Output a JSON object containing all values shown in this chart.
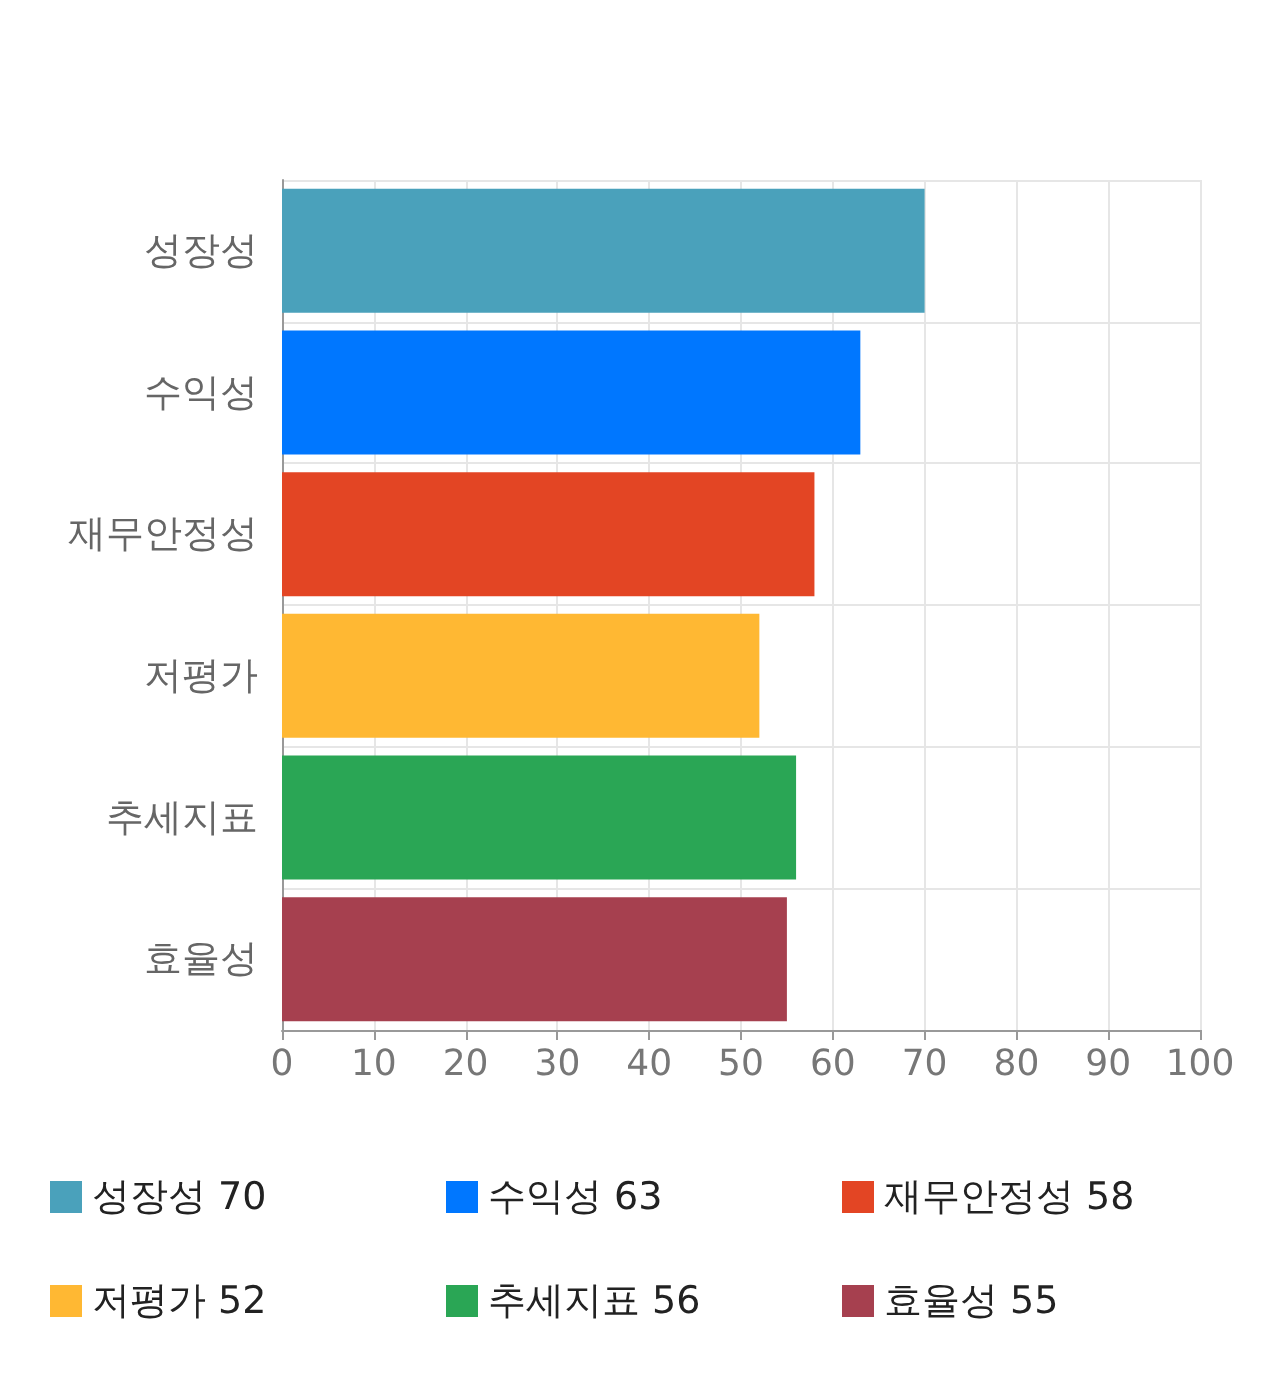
{
  "chart_data": {
    "type": "bar",
    "orientation": "horizontal",
    "stacked": true,
    "categories": [
      "성장성",
      "수익성",
      "재무안정성",
      "저평가",
      "추세지표",
      "효율성"
    ],
    "series": [
      {
        "name": "성장성 70",
        "color": "#4aa1bb",
        "values": [
          70,
          null,
          null,
          null,
          null,
          null
        ]
      },
      {
        "name": "수익성 63",
        "color": "#0077ff",
        "values": [
          null,
          63,
          null,
          null,
          null,
          null
        ]
      },
      {
        "name": "재무안정성 58",
        "color": "#e34524",
        "values": [
          null,
          null,
          58,
          null,
          null,
          null
        ]
      },
      {
        "name": "저평가 52",
        "color": "#ffb833",
        "values": [
          null,
          null,
          null,
          52,
          null,
          null
        ]
      },
      {
        "name": "추세지표 56",
        "color": "#2aa655",
        "values": [
          null,
          null,
          null,
          null,
          56,
          null
        ]
      },
      {
        "name": "효율성 55",
        "color": "#a6404f",
        "values": [
          null,
          null,
          null,
          null,
          null,
          55
        ]
      }
    ],
    "xlim": [
      0,
      100
    ],
    "xticks": [
      0,
      10,
      20,
      30,
      40,
      50,
      60,
      70,
      80,
      90,
      100
    ],
    "grid": true,
    "legend": "bottom"
  }
}
